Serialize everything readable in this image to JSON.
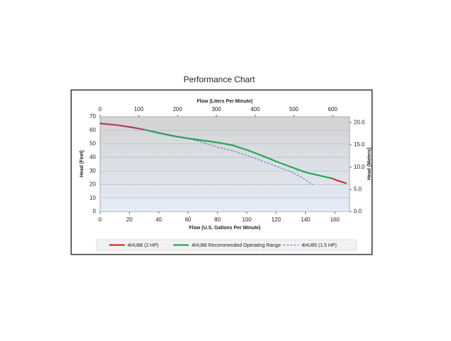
{
  "chart_data": {
    "type": "line",
    "title": "Performance Chart",
    "xlabel": "Flow (U.S. Gallons Per Minute)",
    "x2label": "Flow (Liters Per Minute)",
    "ylabel": "Head (Feet)",
    "y2label": "Head (Meters)",
    "xlim": [
      0,
      170
    ],
    "xticks": [
      0,
      20,
      40,
      60,
      80,
      100,
      120,
      140,
      160
    ],
    "x2lim": [
      0,
      643.5
    ],
    "x2ticks": [
      0,
      100,
      200,
      300,
      400,
      500,
      600
    ],
    "ylim": [
      0,
      70
    ],
    "yticks": [
      0,
      10,
      20,
      30,
      40,
      50,
      60,
      70
    ],
    "y2lim": [
      0,
      21.336
    ],
    "y2ticks": [
      {
        "value": 0,
        "label": "0.0"
      },
      {
        "value": 5,
        "label": "5.0"
      },
      {
        "value": 10,
        "label": "10.0"
      },
      {
        "value": 15,
        "label": "15.0"
      },
      {
        "value": 20,
        "label": "20.0"
      }
    ],
    "grid": true,
    "legend": "bottom",
    "series": [
      {
        "name": "4HU88 (2 HP)",
        "color": "#d62b2b",
        "dashed": false,
        "x": [
          0,
          10,
          20,
          30,
          null,
          158,
          163,
          168
        ],
        "values": [
          65,
          64,
          62.5,
          60.5,
          null,
          24.5,
          22.5,
          20.8
        ]
      },
      {
        "name": "4HU88 Recommended Operating Range",
        "color": "#1faa4f",
        "dashed": false,
        "x": [
          30,
          40,
          50,
          60,
          70,
          80,
          90,
          100,
          110,
          120,
          130,
          140,
          150,
          158
        ],
        "values": [
          60.5,
          58,
          55.8,
          54,
          52.5,
          51,
          49,
          45.5,
          41.5,
          37,
          33,
          29,
          26.5,
          24.5
        ]
      },
      {
        "name": "4HU85 (1.5 HP)",
        "color": "#4a72c4",
        "dashed": true,
        "x": [
          0,
          10,
          20,
          30,
          40,
          50,
          60,
          70,
          80,
          90,
          100,
          110,
          120,
          130,
          138,
          145
        ],
        "values": [
          65.5,
          64,
          62,
          60.5,
          58.5,
          56,
          54,
          51,
          47.5,
          45,
          41.5,
          37.5,
          33.5,
          29.5,
          25,
          19.8
        ]
      }
    ]
  }
}
